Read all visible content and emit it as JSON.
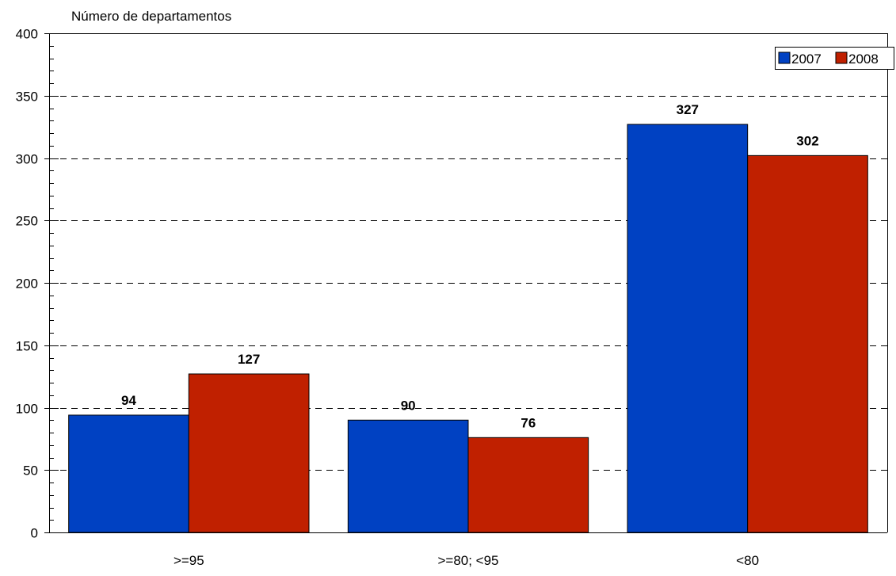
{
  "chart_data": {
    "type": "bar",
    "title": "",
    "ylabel": "Número de departamentos",
    "xlabel": "",
    "ylim": [
      0,
      400
    ],
    "yticks": [
      0,
      50,
      100,
      150,
      200,
      250,
      300,
      350,
      400
    ],
    "ytick_labels": [
      "0",
      "50",
      "100",
      "150",
      "200",
      "250",
      "300",
      "350",
      "400"
    ],
    "grid": "horizontal dashed",
    "legend_position": "top-right",
    "categories": [
      ">=95",
      ">=80; <95",
      "<80"
    ],
    "series": [
      {
        "name": "2007",
        "color": "#0041c2",
        "values": [
          94,
          90,
          327
        ]
      },
      {
        "name": "2008",
        "color": "#c02000",
        "values": [
          127,
          76,
          302
        ]
      }
    ],
    "data_labels": [
      [
        "94",
        "90",
        "327"
      ],
      [
        "127",
        "76",
        "302"
      ]
    ]
  }
}
